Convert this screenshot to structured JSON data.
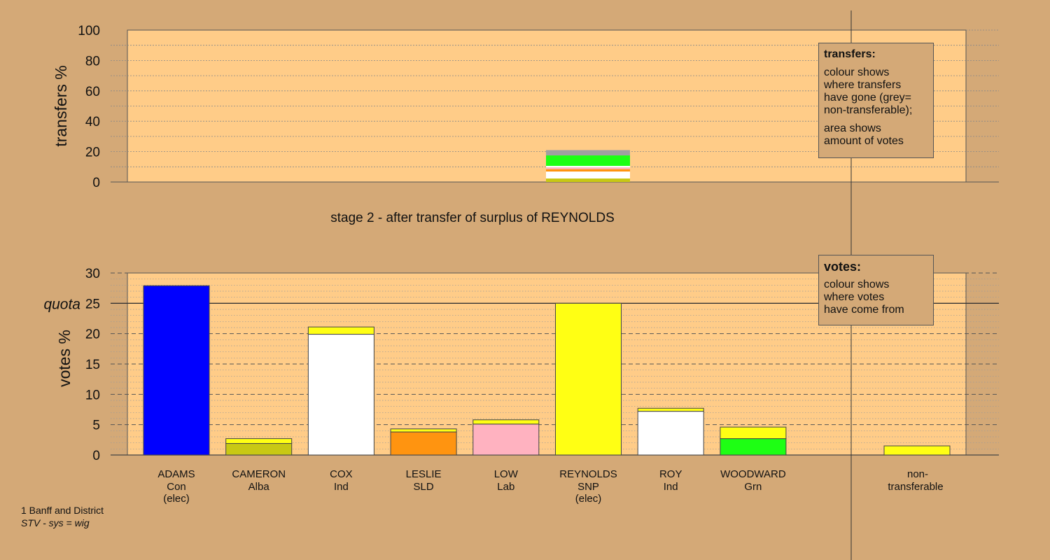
{
  "colors": {
    "page_bg": "#d4a977",
    "plot_bg": "#ffcc88",
    "Con": "#0000ff",
    "Alba": "#c8c814",
    "Ind": "#ffffff",
    "SLD": "#ff9410",
    "Lab": "#ffb2c0",
    "SNP": "#ffff14",
    "Grn": "#1eff14",
    "nontransferable": "#a0a0a0"
  },
  "footnote": {
    "line1": "1 Banff and District",
    "line2": "STV - sys = wig"
  },
  "legend_transfers": {
    "title": "transfers:",
    "p1": "colour shows\nwhere transfers\nhave gone (grey=\nnon-transferable);",
    "p2": "area shows\namount of votes"
  },
  "legend_votes": {
    "title": "votes:",
    "p1": "colour shows\nwhere votes\nhave come from"
  },
  "chart_data": [
    {
      "type": "bar",
      "chart": "transfers",
      "ylabel": "transfers %",
      "ylim": [
        0,
        100
      ],
      "yticks": [
        0,
        20,
        40,
        60,
        80,
        100
      ],
      "grid": true,
      "source_candidate": "REYNOLDS",
      "segments": [
        {
          "party": "Alba",
          "from": 0.0,
          "to": 2.3
        },
        {
          "party": "Ind",
          "from": 2.3,
          "to": 6.9
        },
        {
          "party": "SLD",
          "from": 6.9,
          "to": 8.4
        },
        {
          "party": "Lab",
          "from": 8.4,
          "to": 9.6
        },
        {
          "party": "Ind",
          "from": 9.6,
          "to": 10.6
        },
        {
          "party": "Grn",
          "from": 10.6,
          "to": 17.5
        },
        {
          "party": "nontransferable",
          "from": 17.5,
          "to": 21.0
        }
      ]
    },
    {
      "type": "bar",
      "chart": "votes",
      "title": "stage 2 - after transfer of surplus of REYNOLDS",
      "ylabel": "votes %",
      "ylim": [
        0,
        30
      ],
      "yticks": [
        0,
        5,
        10,
        15,
        20,
        25,
        30
      ],
      "quota_label": "quota",
      "quota": 25,
      "grid": true,
      "candidates": [
        {
          "name": "ADAMS",
          "party": "Con",
          "note": "(elec)",
          "first": 27.9,
          "transfer": 0
        },
        {
          "name": "CAMERON",
          "party": "Alba",
          "note": "",
          "first": 1.9,
          "transfer": 0.8
        },
        {
          "name": "COX",
          "party": "Ind",
          "note": "",
          "first": 19.9,
          "transfer": 1.2
        },
        {
          "name": "LESLIE",
          "party": "SLD",
          "note": "",
          "first": 3.8,
          "transfer": 0.5
        },
        {
          "name": "LOW",
          "party": "Lab",
          "note": "",
          "first": 5.1,
          "transfer": 0.7
        },
        {
          "name": "REYNOLDS",
          "party": "SNP",
          "note": "(elec)",
          "first": 25.0,
          "transfer": 0
        },
        {
          "name": "ROY",
          "party": "Ind",
          "note": "",
          "first": 7.2,
          "transfer": 0.5
        },
        {
          "name": "WOODWARD",
          "party": "Grn",
          "note": "",
          "first": 2.7,
          "transfer": 1.9
        }
      ],
      "nontransferable": {
        "label_line1": "non-",
        "label_line2": "transferable",
        "value": 1.5
      }
    }
  ]
}
